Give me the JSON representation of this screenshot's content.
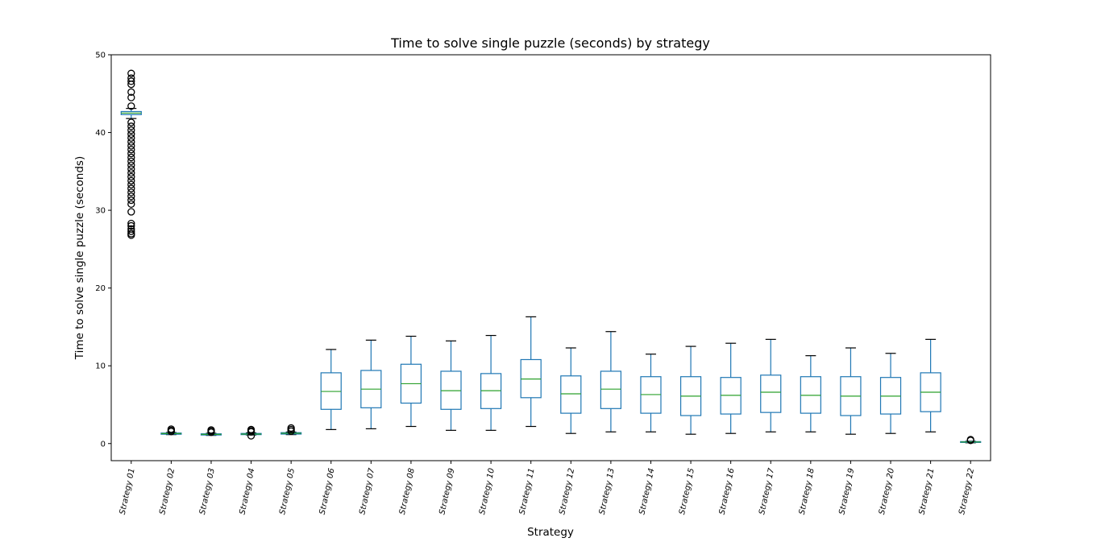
{
  "chart_data": {
    "type": "box",
    "title": "Time to solve single puzzle (seconds) by strategy",
    "xlabel": "Strategy",
    "ylabel": "Time to solve single puzzle (seconds)",
    "ylim": [
      -2.2,
      50
    ],
    "yticks": [
      0,
      10,
      20,
      30,
      40,
      50
    ],
    "grid": false,
    "colors": {
      "box": "#1f77b4",
      "median": "#2ca02c",
      "cap": "#000000",
      "flier": "#000000"
    },
    "categories": [
      "Strategy 01",
      "Strategy 02",
      "Strategy 03",
      "Strategy 04",
      "Strategy 05",
      "Strategy 06",
      "Strategy 07",
      "Strategy 08",
      "Strategy 09",
      "Strategy 10",
      "Strategy 11",
      "Strategy 12",
      "Strategy 13",
      "Strategy 14",
      "Strategy 15",
      "Strategy 16",
      "Strategy 17",
      "Strategy 18",
      "Strategy 19",
      "Strategy 20",
      "Strategy 21",
      "Strategy 22"
    ],
    "boxes": [
      {
        "whisker_low": 41.8,
        "q1": 42.3,
        "median": 42.5,
        "q3": 42.7,
        "whisker_high": 43.1,
        "fliers": [
          26.8,
          27.0,
          27.3,
          27.6,
          28.0,
          28.3,
          29.8,
          30.8,
          31.3,
          31.8,
          32.3,
          32.8,
          33.3,
          33.8,
          34.3,
          34.8,
          35.3,
          35.8,
          36.3,
          36.8,
          37.3,
          37.8,
          38.3,
          38.8,
          39.3,
          39.8,
          40.3,
          40.8,
          41.3,
          43.4,
          44.5,
          45.2,
          46.2,
          46.6,
          47.0,
          47.6
        ]
      },
      {
        "whisker_low": 1.15,
        "q1": 1.2,
        "median": 1.28,
        "q3": 1.35,
        "whisker_high": 1.42,
        "fliers": [
          1.55,
          1.7,
          1.85
        ]
      },
      {
        "whisker_low": 1.05,
        "q1": 1.1,
        "median": 1.18,
        "q3": 1.25,
        "whisker_high": 1.32,
        "fliers": [
          1.45,
          1.6,
          1.75
        ]
      },
      {
        "whisker_low": 1.1,
        "q1": 1.15,
        "median": 1.22,
        "q3": 1.3,
        "whisker_high": 1.38,
        "fliers": [
          1.0,
          1.5,
          1.65,
          1.8
        ]
      },
      {
        "whisker_low": 1.15,
        "q1": 1.22,
        "median": 1.32,
        "q3": 1.4,
        "whisker_high": 1.48,
        "fliers": [
          1.6,
          1.8,
          2.0
        ]
      },
      {
        "whisker_low": 1.8,
        "q1": 4.4,
        "median": 6.7,
        "q3": 9.1,
        "whisker_high": 12.1,
        "fliers": []
      },
      {
        "whisker_low": 1.9,
        "q1": 4.6,
        "median": 7.0,
        "q3": 9.4,
        "whisker_high": 13.3,
        "fliers": []
      },
      {
        "whisker_low": 2.2,
        "q1": 5.2,
        "median": 7.7,
        "q3": 10.2,
        "whisker_high": 13.8,
        "fliers": []
      },
      {
        "whisker_low": 1.7,
        "q1": 4.4,
        "median": 6.8,
        "q3": 9.3,
        "whisker_high": 13.2,
        "fliers": []
      },
      {
        "whisker_low": 1.7,
        "q1": 4.5,
        "median": 6.8,
        "q3": 9.0,
        "whisker_high": 13.9,
        "fliers": []
      },
      {
        "whisker_low": 2.2,
        "q1": 5.9,
        "median": 8.3,
        "q3": 10.8,
        "whisker_high": 16.3,
        "fliers": []
      },
      {
        "whisker_low": 1.3,
        "q1": 3.9,
        "median": 6.4,
        "q3": 8.7,
        "whisker_high": 12.3,
        "fliers": []
      },
      {
        "whisker_low": 1.5,
        "q1": 4.5,
        "median": 7.0,
        "q3": 9.3,
        "whisker_high": 14.4,
        "fliers": []
      },
      {
        "whisker_low": 1.5,
        "q1": 3.9,
        "median": 6.3,
        "q3": 8.6,
        "whisker_high": 11.5,
        "fliers": []
      },
      {
        "whisker_low": 1.2,
        "q1": 3.6,
        "median": 6.1,
        "q3": 8.6,
        "whisker_high": 12.5,
        "fliers": []
      },
      {
        "whisker_low": 1.3,
        "q1": 3.8,
        "median": 6.2,
        "q3": 8.5,
        "whisker_high": 12.9,
        "fliers": []
      },
      {
        "whisker_low": 1.5,
        "q1": 4.0,
        "median": 6.6,
        "q3": 8.8,
        "whisker_high": 13.4,
        "fliers": []
      },
      {
        "whisker_low": 1.5,
        "q1": 3.9,
        "median": 6.2,
        "q3": 8.6,
        "whisker_high": 11.3,
        "fliers": []
      },
      {
        "whisker_low": 1.2,
        "q1": 3.6,
        "median": 6.1,
        "q3": 8.6,
        "whisker_high": 12.3,
        "fliers": []
      },
      {
        "whisker_low": 1.3,
        "q1": 3.8,
        "median": 6.1,
        "q3": 8.5,
        "whisker_high": 11.6,
        "fliers": []
      },
      {
        "whisker_low": 1.5,
        "q1": 4.1,
        "median": 6.6,
        "q3": 9.1,
        "whisker_high": 13.4,
        "fliers": []
      },
      {
        "whisker_low": 0.1,
        "q1": 0.15,
        "median": 0.2,
        "q3": 0.25,
        "whisker_high": 0.3,
        "fliers": [
          0.4,
          0.5
        ]
      }
    ]
  }
}
